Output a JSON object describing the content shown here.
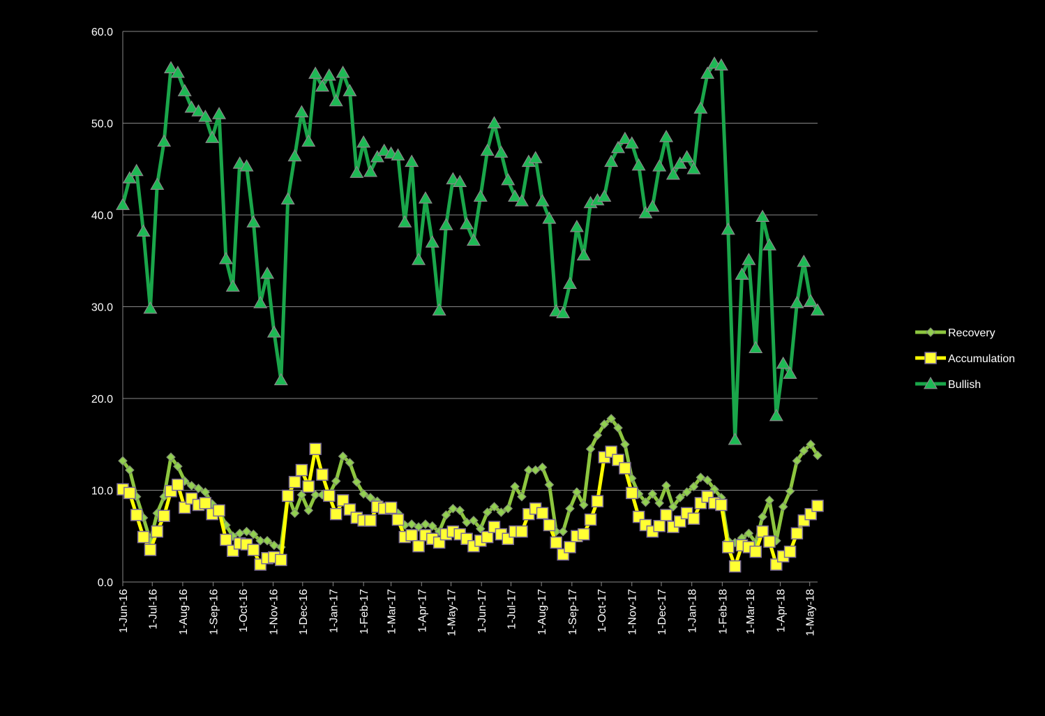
{
  "chart_data": {
    "type": "line",
    "x": [
      "2016-06-01",
      "2016-06-08",
      "2016-06-15",
      "2016-06-22",
      "2016-06-29",
      "2016-07-06",
      "2016-07-13",
      "2016-07-20",
      "2016-07-27",
      "2016-08-03",
      "2016-08-10",
      "2016-08-17",
      "2016-08-24",
      "2016-08-31",
      "2016-09-07",
      "2016-09-14",
      "2016-09-21",
      "2016-09-28",
      "2016-10-05",
      "2016-10-12",
      "2016-10-19",
      "2016-10-26",
      "2016-11-02",
      "2016-11-09",
      "2016-11-16",
      "2016-11-23",
      "2016-11-30",
      "2016-12-07",
      "2016-12-14",
      "2016-12-21",
      "2016-12-28",
      "2017-01-04",
      "2017-01-11",
      "2017-01-18",
      "2017-01-25",
      "2017-02-01",
      "2017-02-08",
      "2017-02-15",
      "2017-02-22",
      "2017-03-01",
      "2017-03-08",
      "2017-03-15",
      "2017-03-22",
      "2017-03-29",
      "2017-04-05",
      "2017-04-12",
      "2017-04-19",
      "2017-04-26",
      "2017-05-03",
      "2017-05-10",
      "2017-05-17",
      "2017-05-24",
      "2017-05-31",
      "2017-06-07",
      "2017-06-14",
      "2017-06-21",
      "2017-06-28",
      "2017-07-05",
      "2017-07-12",
      "2017-07-19",
      "2017-07-26",
      "2017-08-02",
      "2017-08-09",
      "2017-08-16",
      "2017-08-23",
      "2017-08-30",
      "2017-09-06",
      "2017-09-13",
      "2017-09-20",
      "2017-09-27",
      "2017-10-04",
      "2017-10-11",
      "2017-10-18",
      "2017-10-25",
      "2017-11-01",
      "2017-11-08",
      "2017-11-15",
      "2017-11-22",
      "2017-11-29",
      "2017-12-06",
      "2017-12-13",
      "2017-12-20",
      "2017-12-27",
      "2018-01-03",
      "2018-01-10",
      "2018-01-17",
      "2018-01-24",
      "2018-01-31",
      "2018-02-07",
      "2018-02-14",
      "2018-02-21",
      "2018-02-28",
      "2018-03-07",
      "2018-03-14",
      "2018-03-21",
      "2018-03-28",
      "2018-04-04",
      "2018-04-11",
      "2018-04-18",
      "2018-04-25",
      "2018-05-02",
      "2018-05-09"
    ],
    "series": [
      {
        "name": "Recovery",
        "color": "#8dc63f",
        "marker": "diamond",
        "marker_color": "#92d050",
        "values": [
          13.2,
          12.2,
          9.3,
          7,
          4.5,
          7.5,
          9.3,
          13.6,
          12.6,
          11,
          10.5,
          10.2,
          9.8,
          8.5,
          7.8,
          6.2,
          5,
          5.3,
          5.5,
          5.2,
          4.5,
          4.5,
          4,
          3.8,
          9.5,
          7.5,
          9.5,
          7.8,
          9.5,
          9.5,
          9.5,
          11,
          13.7,
          13,
          10.9,
          9.6,
          9.2,
          8.8,
          8.2,
          7.8,
          7.5,
          6.2,
          6.3,
          6,
          6.3,
          6.1,
          5.5,
          7.3,
          8,
          7.8,
          6.5,
          6.7,
          5.8,
          7.6,
          8.2,
          7.6,
          8,
          10.4,
          9.3,
          12.2,
          12.2,
          12.5,
          10.6,
          5.5,
          5.5,
          8,
          9.8,
          8.4,
          14.5,
          16,
          17.2,
          17.8,
          16.8,
          15,
          11.3,
          9.6,
          8.7,
          9.6,
          8.6,
          10.5,
          8.2,
          9.2,
          9.8,
          10.4,
          11.4,
          11.1,
          10.1,
          9.2,
          4.5,
          4.3,
          4.8,
          5.3,
          4.3,
          7.1,
          8.9,
          4.5,
          8.2,
          9.9,
          13.2,
          14.3,
          15,
          13.8
        ]
      },
      {
        "name": "Accumulation",
        "color": "#ffff00",
        "marker": "square",
        "marker_color": "#ffff33",
        "values": [
          10.1,
          9.7,
          7.3,
          4.9,
          3.5,
          5.5,
          7.2,
          9.9,
          10.6,
          8.1,
          9.1,
          8.4,
          8.6,
          7.4,
          7.8,
          4.6,
          3.4,
          4.2,
          4.1,
          3.5,
          1.9,
          2.6,
          2.7,
          2.4,
          9.4,
          10.9,
          12.2,
          10.4,
          14.5,
          11.7,
          9.4,
          7.4,
          8.9,
          7.9,
          7,
          6.7,
          6.7,
          8.2,
          8,
          8.1,
          6.8,
          4.9,
          5.1,
          3.9,
          5.1,
          4.7,
          4.3,
          5.2,
          5.5,
          5.2,
          4.7,
          3.9,
          4.5,
          4.9,
          6,
          5.2,
          4.7,
          5.5,
          5.5,
          7.4,
          8,
          7.5,
          6.2,
          4.3,
          3,
          3.8,
          5,
          5.2,
          6.8,
          8.8,
          13.6,
          14.2,
          13.3,
          12.4,
          9.7,
          7.1,
          6.2,
          5.5,
          6.1,
          7.3,
          6,
          6.6,
          7.5,
          6.9,
          8.6,
          9.3,
          8.6,
          8.4,
          3.8,
          1.7,
          4,
          3.8,
          3.3,
          5.5,
          4.4,
          1.9,
          2.8,
          3.3,
          5.3,
          6.7,
          7.4,
          8.3
        ]
      },
      {
        "name": "Bullish",
        "color": "#1aa64a",
        "marker": "triangle",
        "marker_color": "#1db954",
        "values": [
          41.1,
          44,
          44.8,
          38.2,
          29.8,
          43.3,
          48,
          56,
          55.5,
          53.5,
          51.7,
          51.3,
          50.7,
          48.4,
          51,
          35.2,
          32.2,
          45.6,
          45.3,
          39.2,
          30.4,
          33.6,
          27.2,
          22,
          41.7,
          46.4,
          51.2,
          48,
          55.4,
          54,
          55.2,
          52.4,
          55.5,
          53.5,
          44.6,
          47.9,
          44.7,
          46.3,
          47,
          46.7,
          46.5,
          39.2,
          45.8,
          35.1,
          41.8,
          37,
          29.6,
          38.9,
          43.9,
          43.6,
          39,
          37.2,
          42,
          47,
          50,
          46.8,
          43.8,
          42,
          41.5,
          45.8,
          46.2,
          41.5,
          39.6,
          29.5,
          29.3,
          32.5,
          38.7,
          35.6,
          41.3,
          41.6,
          42,
          45.8,
          47.3,
          48.3,
          47.8,
          45.4,
          40.2,
          40.9,
          45.3,
          48.5,
          44.4,
          45.6,
          46.3,
          45,
          51.6,
          55.4,
          56.5,
          56.3,
          38.4,
          15.5,
          33.5,
          35.1,
          25.5,
          39.8,
          36.7,
          18.1,
          23.8,
          22.7,
          30.4,
          34.9,
          30.6,
          29.6
        ]
      }
    ],
    "xlim": [
      "2016-06-01",
      "2018-05-09"
    ],
    "xticks": [
      {
        "value": "2016-06-01",
        "label": "1-Jun-16"
      },
      {
        "value": "2016-07-01",
        "label": "1-Jul-16"
      },
      {
        "value": "2016-08-01",
        "label": "1-Aug-16"
      },
      {
        "value": "2016-09-01",
        "label": "1-Sep-16"
      },
      {
        "value": "2016-10-01",
        "label": "1-Oct-16"
      },
      {
        "value": "2016-11-01",
        "label": "1-Nov-16"
      },
      {
        "value": "2016-12-01",
        "label": "1-Dec-16"
      },
      {
        "value": "2017-01-01",
        "label": "1-Jan-17"
      },
      {
        "value": "2017-02-01",
        "label": "1-Feb-17"
      },
      {
        "value": "2017-03-01",
        "label": "1-Mar-17"
      },
      {
        "value": "2017-04-01",
        "label": "1-Apr-17"
      },
      {
        "value": "2017-05-01",
        "label": "1-May-17"
      },
      {
        "value": "2017-06-01",
        "label": "1-Jun-17"
      },
      {
        "value": "2017-07-01",
        "label": "1-Jul-17"
      },
      {
        "value": "2017-08-01",
        "label": "1-Aug-17"
      },
      {
        "value": "2017-09-01",
        "label": "1-Sep-17"
      },
      {
        "value": "2017-10-01",
        "label": "1-Oct-17"
      },
      {
        "value": "2017-11-01",
        "label": "1-Nov-17"
      },
      {
        "value": "2017-12-01",
        "label": "1-Dec-17"
      },
      {
        "value": "2018-01-01",
        "label": "1-Jan-18"
      },
      {
        "value": "2018-02-01",
        "label": "1-Feb-18"
      },
      {
        "value": "2018-03-01",
        "label": "1-Mar-18"
      },
      {
        "value": "2018-04-01",
        "label": "1-Apr-18"
      },
      {
        "value": "2018-05-01",
        "label": "1-May-18"
      }
    ],
    "ylim": [
      0,
      60
    ],
    "yticks": [
      {
        "value": 0,
        "label": "0.0"
      },
      {
        "value": 10,
        "label": "10.0"
      },
      {
        "value": 20,
        "label": "20.0"
      },
      {
        "value": 30,
        "label": "30.0"
      },
      {
        "value": 40,
        "label": "40.0"
      },
      {
        "value": 50,
        "label": "50.0"
      },
      {
        "value": 60,
        "label": "60.0"
      }
    ],
    "grid": true,
    "legend": "right"
  }
}
